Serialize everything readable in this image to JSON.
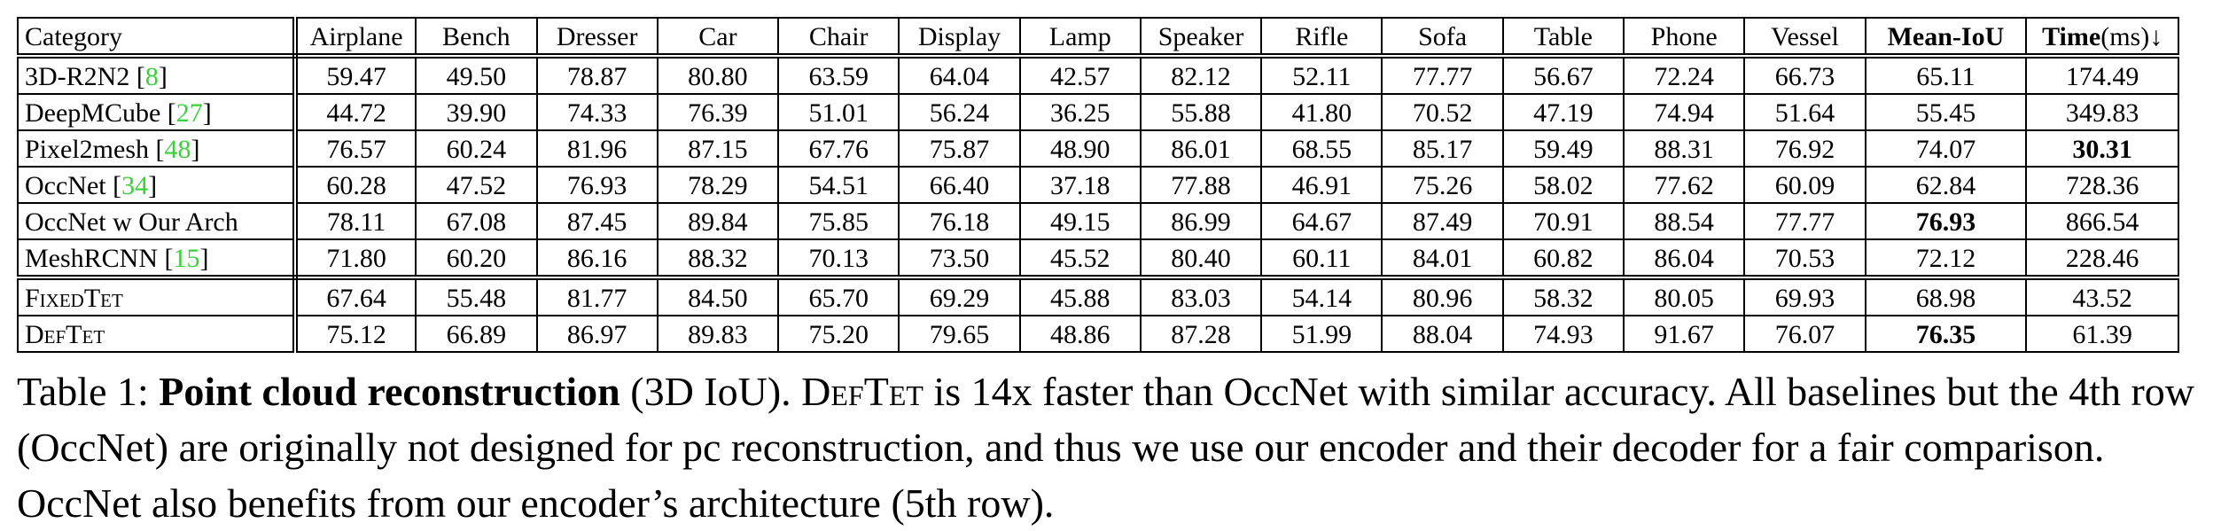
{
  "table": {
    "headers": [
      "Category",
      "Airplane",
      "Bench",
      "Dresser",
      "Car",
      "Chair",
      "Display",
      "Lamp",
      "Speaker",
      "Rifle",
      "Sofa",
      "Table",
      "Phone",
      "Vessel",
      "Mean-IoU",
      "Time"
    ],
    "time_suffix": "(ms)↓",
    "rows": [
      {
        "method": "3D-R2N2",
        "ref": "8",
        "values": [
          "59.47",
          "49.50",
          "78.87",
          "80.80",
          "63.59",
          "64.04",
          "42.57",
          "82.12",
          "52.11",
          "77.77",
          "56.67",
          "72.24",
          "66.73",
          "65.11",
          "174.49"
        ]
      },
      {
        "method": "DeepMCube",
        "ref": "27",
        "values": [
          "44.72",
          "39.90",
          "74.33",
          "76.39",
          "51.01",
          "56.24",
          "36.25",
          "55.88",
          "41.80",
          "70.52",
          "47.19",
          "74.94",
          "51.64",
          "55.45",
          "349.83"
        ]
      },
      {
        "method": "Pixel2mesh",
        "ref": "48",
        "values": [
          "76.57",
          "60.24",
          "81.96",
          "87.15",
          "67.76",
          "75.87",
          "48.90",
          "86.01",
          "68.55",
          "85.17",
          "59.49",
          "88.31",
          "76.92",
          "74.07",
          "30.31"
        ]
      },
      {
        "method": "OccNet",
        "ref": "34",
        "values": [
          "60.28",
          "47.52",
          "76.93",
          "78.29",
          "54.51",
          "66.40",
          "37.18",
          "77.88",
          "46.91",
          "75.26",
          "58.02",
          "77.62",
          "60.09",
          "62.84",
          "728.36"
        ]
      },
      {
        "method": "OccNet w Our Arch",
        "ref": "",
        "values": [
          "78.11",
          "67.08",
          "87.45",
          "89.84",
          "75.85",
          "76.18",
          "49.15",
          "86.99",
          "64.67",
          "87.49",
          "70.91",
          "88.54",
          "77.77",
          "76.93",
          "866.54"
        ]
      },
      {
        "method": "MeshRCNN",
        "ref": "15",
        "values": [
          "71.80",
          "60.20",
          "86.16",
          "88.32",
          "70.13",
          "73.50",
          "45.52",
          "80.40",
          "60.11",
          "84.01",
          "60.82",
          "86.04",
          "70.53",
          "72.12",
          "228.46"
        ]
      },
      {
        "method": "FixedTet",
        "ref": "",
        "values": [
          "67.64",
          "55.48",
          "81.77",
          "84.50",
          "65.70",
          "69.29",
          "45.88",
          "83.03",
          "54.14",
          "80.96",
          "58.32",
          "80.05",
          "69.93",
          "68.98",
          "43.52"
        ]
      },
      {
        "method": "DefTet",
        "ref": "",
        "values": [
          "75.12",
          "66.89",
          "86.97",
          "89.83",
          "75.20",
          "79.65",
          "48.86",
          "87.28",
          "51.99",
          "88.04",
          "74.93",
          "91.67",
          "76.07",
          "76.35",
          "61.39"
        ]
      }
    ]
  },
  "caption": {
    "label": "Table 1: ",
    "title": "Point cloud reconstruction",
    "text_1": " (3D IoU). ",
    "method_name": "DefTet",
    "text_2": " is 14x faster than OccNet with similar accuracy. All baselines but the 4th row (OccNet) are originally not designed for pc reconstruction, and thus we use our encoder and their decoder for a fair comparison. OccNet also benefits from our encoder’s architecture (5th row)."
  },
  "colors": {
    "reference_link": "#3ad13a"
  }
}
